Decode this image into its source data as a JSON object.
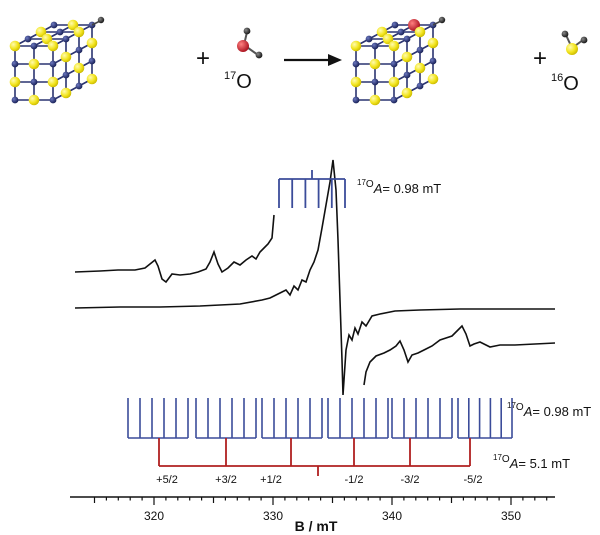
{
  "scheme": {
    "plus_1": "+",
    "reactant_isotope": {
      "mass": "17",
      "element": "O"
    },
    "plus_2": "+",
    "product_isotope": {
      "mass": "16",
      "element": "O"
    }
  },
  "spectrum": {
    "hyperfine_top": {
      "sup": "17",
      "label": "O",
      "var": "A",
      "value": "= 0.98 mT"
    },
    "hyperfine_mid": {
      "sup": "17",
      "label": "O",
      "var": "A",
      "value": "= 0.98 mT"
    },
    "hyperfine_bottom": {
      "sup": "17",
      "label": "O",
      "var": "A",
      "value": "= 5.1 mT"
    },
    "mi_labels": [
      "+5/2",
      "+3/2",
      "+1/2",
      "-1/2",
      "-3/2",
      "-5/2"
    ],
    "axis": {
      "label": "B / mT",
      "ticks": [
        {
          "value": 320,
          "label": "320"
        },
        {
          "value": 330,
          "label": "330"
        },
        {
          "value": 340,
          "label": "340"
        },
        {
          "value": 350,
          "label": "350"
        }
      ]
    }
  },
  "colors": {
    "yellow_atom": "#f2e41c",
    "navy_atom": "#1f2a6b",
    "red_atom": "#d8182a",
    "stick_navy": "#3b4c9a",
    "stick_red": "#b02020",
    "trace": "#111111"
  }
}
